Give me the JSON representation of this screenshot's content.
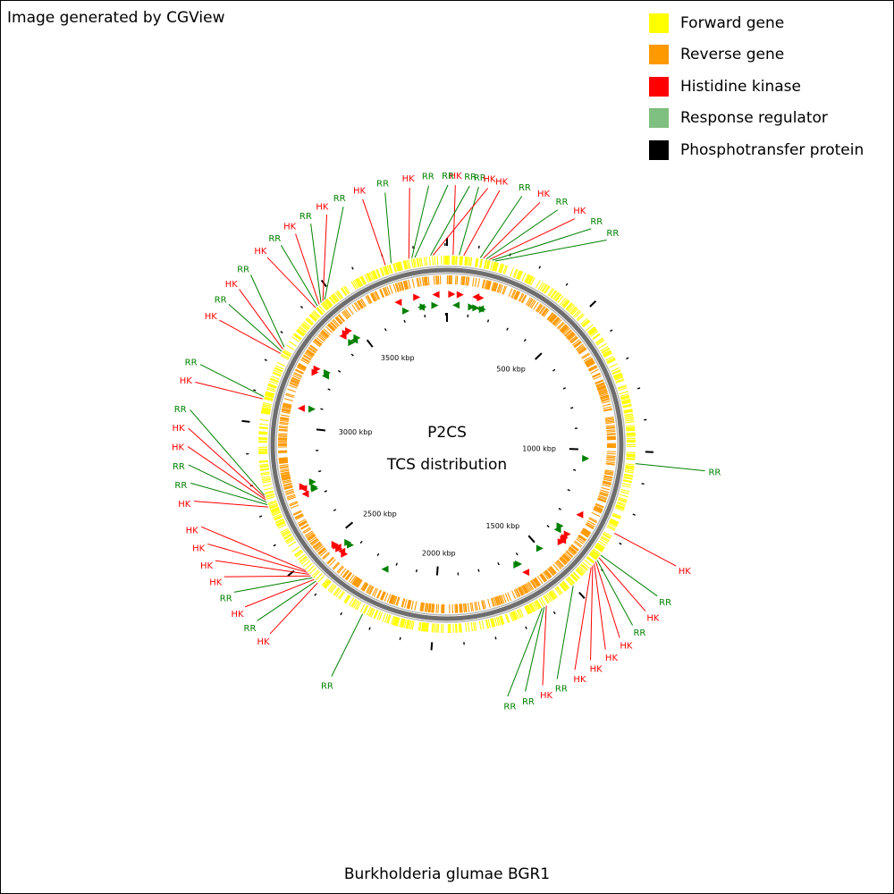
{
  "credit": "Image generated by CGView",
  "title": "Burkholderia glumae BGR1",
  "center": {
    "line1": "P2CS",
    "line2": "TCS distribution"
  },
  "colors": {
    "forward": "#ffff00",
    "reverse": "#ff9900",
    "hk": "#ff0000",
    "rr": "#008000",
    "pt": "#000000",
    "backbone": "#7a7a7a",
    "rr_legend": "#7fbf7f"
  },
  "legend": [
    {
      "label": "Forward gene",
      "color": "#ffff00"
    },
    {
      "label": "Reverse gene",
      "color": "#ff9900"
    },
    {
      "label": "Histidine kinase",
      "color": "#ff0000"
    },
    {
      "label": "Response regulator",
      "color": "#7fbf7f"
    },
    {
      "label": "Phosphotransfer protein",
      "color": "#000000"
    }
  ],
  "genome": {
    "length_kbp": 3906,
    "tick_labels": [
      "500 kbp",
      "1000 kbp",
      "1500 kbp",
      "2000 kbp",
      "2500 kbp",
      "3000 kbp",
      "3500 kbp"
    ],
    "tick_values_kbp": [
      500,
      1000,
      1500,
      2000,
      2500,
      3000,
      3500
    ]
  },
  "callouts": [
    {
      "type": "HK",
      "label": "HK",
      "kbp": 3860
    },
    {
      "type": "RR",
      "label": "RR",
      "kbp": 3852
    },
    {
      "type": "HK",
      "label": "HK",
      "kbp": 20
    },
    {
      "type": "RR",
      "label": "RR",
      "kbp": 40
    },
    {
      "type": "HK",
      "label": "HK",
      "kbp": 55
    },
    {
      "type": "RR",
      "label": "RR",
      "kbp": 110
    },
    {
      "type": "HK",
      "label": "HK",
      "kbp": 120
    },
    {
      "type": "RR",
      "label": "RR",
      "kbp": 130
    },
    {
      "type": "HK",
      "label": "HK",
      "kbp": 140
    },
    {
      "type": "RR",
      "label": "RR",
      "kbp": 150
    },
    {
      "type": "RR",
      "label": "RR",
      "kbp": 160
    },
    {
      "type": "RR",
      "label": "RR",
      "kbp": 1040
    },
    {
      "type": "HK",
      "label": "HK",
      "kbp": 1280
    },
    {
      "type": "RR",
      "label": "RR",
      "kbp": 1365
    },
    {
      "type": "HK",
      "label": "HK",
      "kbp": 1375
    },
    {
      "type": "RR",
      "label": "RR",
      "kbp": 1385
    },
    {
      "type": "HK",
      "label": "HK",
      "kbp": 1392
    },
    {
      "type": "HK",
      "label": "HK",
      "kbp": 1400
    },
    {
      "type": "HK",
      "label": "HK",
      "kbp": 1408
    },
    {
      "type": "HK",
      "label": "HK",
      "kbp": 1416
    },
    {
      "type": "RR",
      "label": "RR",
      "kbp": 1500
    },
    {
      "type": "HK",
      "label": "HK",
      "kbp": 1610
    },
    {
      "type": "RR",
      "label": "RR",
      "kbp": 1618
    },
    {
      "type": "RR",
      "label": "RR",
      "kbp": 1626
    },
    {
      "type": "RR",
      "label": "RR",
      "kbp": 2240
    },
    {
      "type": "HK",
      "label": "HK",
      "kbp": 2420
    },
    {
      "type": "RR",
      "label": "RR",
      "kbp": 2428
    },
    {
      "type": "HK",
      "label": "HK",
      "kbp": 2436
    },
    {
      "type": "RR",
      "label": "RR",
      "kbp": 2444
    },
    {
      "type": "HK",
      "label": "HK",
      "kbp": 2452
    },
    {
      "type": "HK",
      "label": "HK",
      "kbp": 2460
    },
    {
      "type": "HK",
      "label": "HK",
      "kbp": 2468
    },
    {
      "type": "HK",
      "label": "HK",
      "kbp": 2476
    },
    {
      "type": "HK",
      "label": "HK",
      "kbp": 2720
    },
    {
      "type": "RR",
      "label": "RR",
      "kbp": 2728
    },
    {
      "type": "RR",
      "label": "RR",
      "kbp": 2736
    },
    {
      "type": "HK",
      "label": "HK",
      "kbp": 2744
    },
    {
      "type": "HK",
      "label": "HK",
      "kbp": 2752
    },
    {
      "type": "RR",
      "label": "RR",
      "kbp": 2760
    },
    {
      "type": "HK",
      "label": "HK",
      "kbp": 3080
    },
    {
      "type": "RR",
      "label": "RR",
      "kbp": 3088
    },
    {
      "type": "HK",
      "label": "HK",
      "kbp": 3240
    },
    {
      "type": "RR",
      "label": "RR",
      "kbp": 3248
    },
    {
      "type": "HK",
      "label": "HK",
      "kbp": 3256
    },
    {
      "type": "RR",
      "label": "RR",
      "kbp": 3264
    },
    {
      "type": "HK",
      "label": "HK",
      "kbp": 3430
    },
    {
      "type": "RR",
      "label": "RR",
      "kbp": 3438
    },
    {
      "type": "HK",
      "label": "HK",
      "kbp": 3446
    },
    {
      "type": "RR",
      "label": "RR",
      "kbp": 3454
    },
    {
      "type": "HK",
      "label": "HK",
      "kbp": 3462
    },
    {
      "type": "RR",
      "label": "RR",
      "kbp": 3470
    },
    {
      "type": "HK",
      "label": "HK",
      "kbp": 3700
    },
    {
      "type": "RR",
      "label": "RR",
      "kbp": 3720
    },
    {
      "type": "HK",
      "label": "HK",
      "kbp": 3780
    },
    {
      "type": "RR",
      "label": "RR",
      "kbp": 3790
    },
    {
      "type": "RR",
      "label": "RR",
      "kbp": 3800
    }
  ]
}
